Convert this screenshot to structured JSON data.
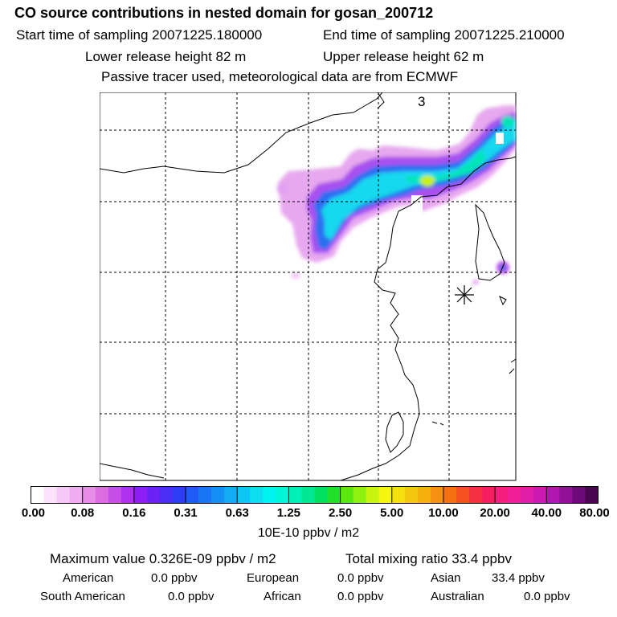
{
  "header": {
    "title": "CO  source contributions in nested domain for gosan_200712",
    "start_time": "Start time of sampling 20071225.180000",
    "end_time": "End time of sampling 20071225.210000",
    "lower_release": "Lower release height   82 m",
    "upper_release": "Upper release height   62 m",
    "tracer_note": "Passive tracer used, meteorological data are from ECMWF"
  },
  "map": {
    "panel_label": "3",
    "station_marker": "asterisk-station-icon"
  },
  "colorbar": {
    "ticks": [
      "0.00",
      "0.08",
      "0.16",
      "0.31",
      "0.63",
      "1.25",
      "2.50",
      "5.00",
      "10.00",
      "20.00",
      "40.00",
      "80.00"
    ],
    "colors": [
      "#ffffff",
      "#fbe3fb",
      "#f7c8f7",
      "#f0acf0",
      "#e78de7",
      "#dc6de0",
      "#c84ee8",
      "#b030f0",
      "#8d1ef5",
      "#6c22f5",
      "#4a2ef5",
      "#2f3cf5",
      "#1f5af5",
      "#1876f5",
      "#1490f5",
      "#12acf5",
      "#0ec6f5",
      "#0ddff0",
      "#00f5f0",
      "#00f5d8",
      "#00f0b8",
      "#00e892",
      "#00e060",
      "#22e028",
      "#5ae810",
      "#90f010",
      "#c8f510",
      "#f5f510",
      "#f5e010",
      "#f5c810",
      "#f5b010",
      "#f59010",
      "#f57010",
      "#f55020",
      "#f53040",
      "#f51f60",
      "#f51f80",
      "#f01f98",
      "#e01fa8",
      "#cc1ab0",
      "#b016b0",
      "#920f98",
      "#6e0a78",
      "#4a0550"
    ],
    "units": "10E-10 ppbv / m2"
  },
  "stats": {
    "max_value": "Maximum value  0.326E-09 ppbv / m2",
    "total_mixing": "Total mixing ratio       33.4 ppbv"
  },
  "regions": [
    {
      "name": "American",
      "value": "0.0 ppbv"
    },
    {
      "name": "European",
      "value": "0.0 ppbv"
    },
    {
      "name": "Asian",
      "value": "33.4 ppbv"
    },
    {
      "name": "South American",
      "value": "0.0 ppbv"
    },
    {
      "name": "African",
      "value": "0.0 ppbv"
    },
    {
      "name": "Australian",
      "value": "0.0 ppbv"
    }
  ]
}
